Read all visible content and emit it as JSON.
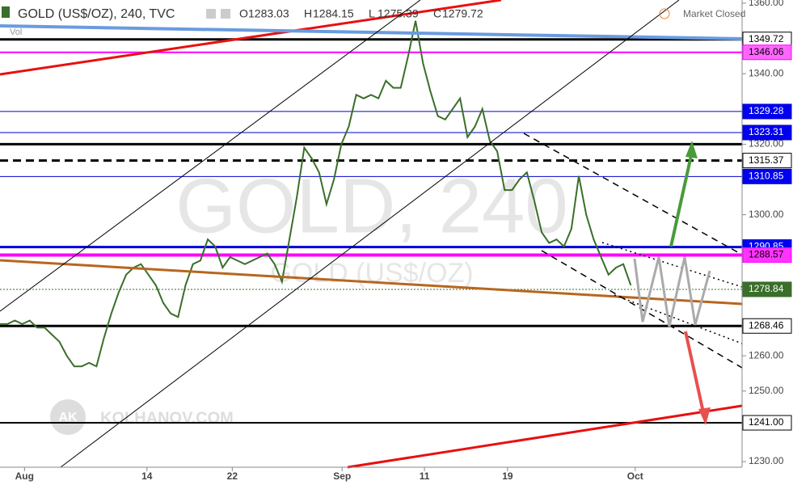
{
  "header": {
    "symbol": "GOLD (US$/OZ), 240, TVC",
    "ohlc": [
      {
        "label": "O",
        "value": 1283.03
      },
      {
        "label": "H",
        "value": 1284.15
      },
      {
        "label": "L",
        "value": 1275.39
      },
      {
        "label": "C",
        "value": 1279.72
      }
    ],
    "status": "Market Closed",
    "vol": "Vol"
  },
  "watermark": {
    "big": "GOLD, 240",
    "small": "GOLD (US$/OZ)",
    "brand": "KOLHANOV.COM",
    "logo": "AK"
  },
  "chart_data": {
    "type": "line",
    "series": [
      {
        "name": "GOLD",
        "color": "#3a6e2a",
        "values": [
          1269,
          1269,
          1270,
          1269,
          1270,
          1268,
          1268,
          1266,
          1264,
          1260,
          1257,
          1257,
          1258,
          1257,
          1265,
          1272,
          1278,
          1283,
          1285,
          1286,
          1283,
          1280,
          1275,
          1272,
          1271,
          1280,
          1286,
          1287,
          1293,
          1291,
          1285,
          1288,
          1287,
          1286,
          1287,
          1288,
          1289,
          1286,
          1281,
          1293,
          1305,
          1319,
          1316,
          1312,
          1303,
          1310,
          1320,
          1325,
          1334,
          1333,
          1334,
          1333,
          1338,
          1336,
          1336,
          1345,
          1355,
          1343,
          1335,
          1328,
          1327,
          1330,
          1333,
          1322,
          1325,
          1330,
          1321,
          1318,
          1307,
          1307,
          1310,
          1312,
          1304,
          1295,
          1292,
          1293,
          1291,
          1296,
          1311,
          1300,
          1293,
          1288,
          1283,
          1285,
          1286,
          1280
        ]
      }
    ],
    "xlim": [
      0,
      100
    ],
    "xticks": [
      {
        "value": 3.3,
        "label": "Aug"
      },
      {
        "value": 19.8,
        "label": "14"
      },
      {
        "value": 31.3,
        "label": "22"
      },
      {
        "value": 46.1,
        "label": "Sep"
      },
      {
        "value": 57.2,
        "label": "11"
      },
      {
        "value": 68.4,
        "label": "19"
      },
      {
        "value": 85.6,
        "label": "Oct"
      }
    ],
    "ylim": [
      1228.4,
      1360.9
    ],
    "yticks": [
      {
        "value": 1230,
        "label": "1230.00"
      },
      {
        "value": 1250,
        "label": "1250.00"
      },
      {
        "value": 1260,
        "label": "1260.00"
      },
      {
        "value": 1300,
        "label": "1300.00"
      },
      {
        "value": 1320,
        "label": "1320.00"
      },
      {
        "value": 1340,
        "label": "1340.00"
      },
      {
        "value": 1360,
        "label": "1360.00"
      }
    ],
    "lines": [
      {
        "value": 1320,
        "color": "#000000",
        "width": 3
      }
    ],
    "levels": [
      {
        "value": 1349.72,
        "label": "1349.72",
        "color": "#000000",
        "width": 3,
        "dash": false,
        "label_bg": "#ffffff",
        "label_fg": "#000000"
      },
      {
        "value": 1346.06,
        "label": "1346.06",
        "color": "#ff00ff",
        "width": 2,
        "dash": false,
        "label_bg": "#ff66ff",
        "label_fg": "#000000"
      },
      {
        "value": 1329.28,
        "label": "1329.28",
        "color": "#0000cc",
        "width": 1,
        "dash": false,
        "label_bg": "#0000ee",
        "label_fg": "#ffffff"
      },
      {
        "value": 1323.31,
        "label": "1323.31",
        "color": "#0000cc",
        "width": 1,
        "dash": false,
        "label_bg": "#0000ee",
        "label_fg": "#ffffff"
      },
      {
        "value": 1315.37,
        "label": "1315.37",
        "color": "#000000",
        "width": 3,
        "dash": true,
        "label_bg": "#ffffff",
        "label_fg": "#000000"
      },
      {
        "value": 1310.85,
        "label": "1310.85",
        "color": "#0000cc",
        "width": 1,
        "dash": false,
        "label_bg": "#0000ee",
        "label_fg": "#ffffff"
      },
      {
        "value": 1290.85,
        "label": "1290.85",
        "color": "#0000dd",
        "width": 3,
        "dash": false,
        "label_bg": "#0000ee",
        "label_fg": "#ffffff"
      },
      {
        "value": 1288.57,
        "label": "1288.57",
        "color": "#ff00ff",
        "width": 4,
        "dash": false,
        "label_bg": "#ff33ff",
        "label_fg": "#000000"
      },
      {
        "value": 1278.84,
        "label": "1278.84",
        "color": "#3a6e2a",
        "width": 1,
        "dash": true,
        "label_bg": "#3a6e2a",
        "label_fg": "#ffffff"
      },
      {
        "value": 1268.46,
        "label": "1268.46",
        "color": "#000000",
        "width": 3,
        "dash": false,
        "label_bg": "#ffffff",
        "label_fg": "#000000"
      },
      {
        "value": 1241,
        "label": "1241.00",
        "color": "#000000",
        "width": 2,
        "dash": false,
        "label_bg": "#ffffff",
        "label_fg": "#000000"
      }
    ]
  }
}
